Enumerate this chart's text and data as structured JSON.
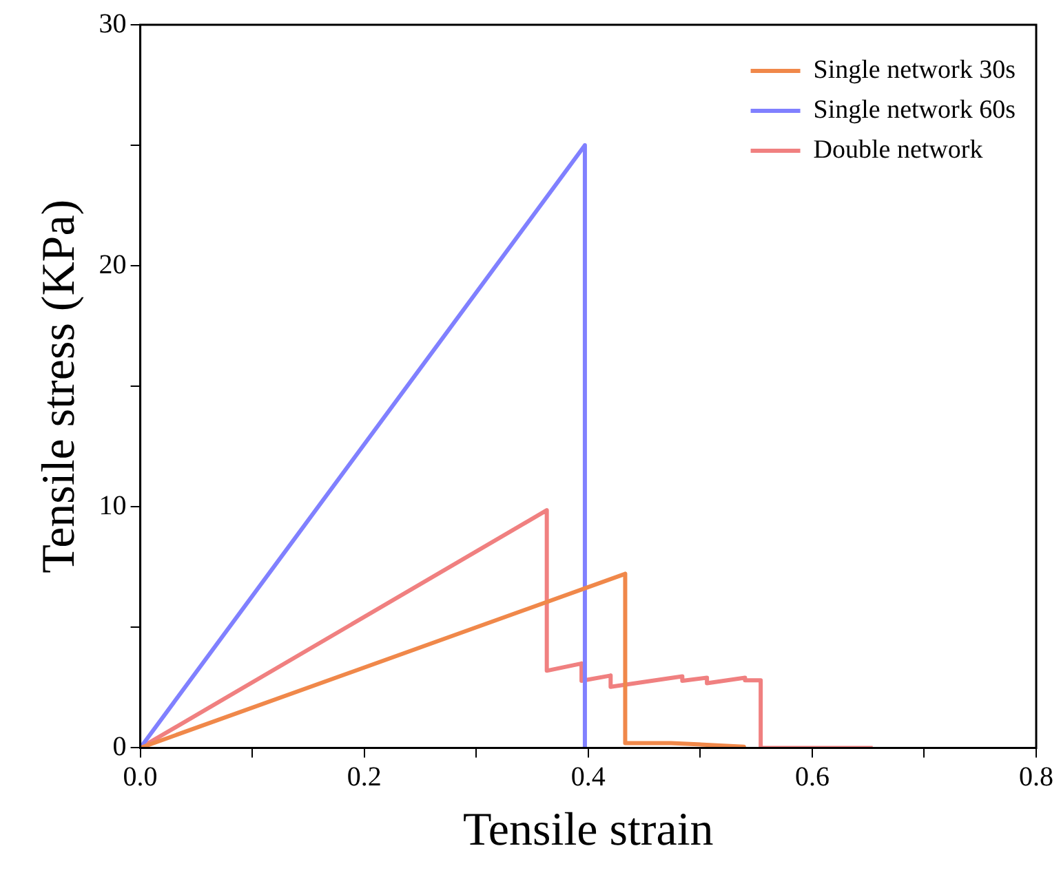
{
  "chart_data": {
    "type": "line",
    "xlabel": "Tensile strain",
    "ylabel": "Tensile stress (KPa)",
    "xlim": [
      0,
      0.8
    ],
    "ylim": [
      0,
      30
    ],
    "xticks": [
      {
        "value": 0,
        "label": "0.0"
      },
      {
        "value": 0.1,
        "label": null
      },
      0.2,
      {
        "value": 0.3,
        "label": null
      },
      0.4,
      {
        "value": 0.5,
        "label": null
      },
      0.6,
      {
        "value": 0.7,
        "label": null
      },
      0.8
    ],
    "yticks": [
      0,
      {
        "value": 5,
        "label": null
      },
      10,
      {
        "value": 15,
        "label": null
      },
      20,
      {
        "value": 25,
        "label": null
      },
      30
    ],
    "grid": false,
    "legend": "top right",
    "marker": "none",
    "line_style": "solid",
    "series": [
      {
        "name": "Single network 30s",
        "color": "#f0884a",
        "x": [
          0,
          0.433,
          0.433,
          0.474,
          0.539,
          0.539
        ],
        "values": [
          0,
          7.22,
          0.2,
          0.2,
          0.05,
          0
        ]
      },
      {
        "name": "Single network 60s",
        "color": "#8080ff",
        "x": [
          0,
          0.397,
          0.397
        ],
        "values": [
          0,
          25,
          0
        ]
      },
      {
        "name": "Double network",
        "color": "#f08080",
        "x": [
          0,
          0.363,
          0.363,
          0.394,
          0.394,
          0.42,
          0.42,
          0.484,
          0.484,
          0.506,
          0.506,
          0.54,
          0.54,
          0.554,
          0.554,
          0.654
        ],
        "values": [
          0,
          9.86,
          3.2,
          3.5,
          2.78,
          3.0,
          2.53,
          2.97,
          2.78,
          2.91,
          2.68,
          2.91,
          2.8,
          2.8,
          0,
          0
        ]
      }
    ]
  }
}
